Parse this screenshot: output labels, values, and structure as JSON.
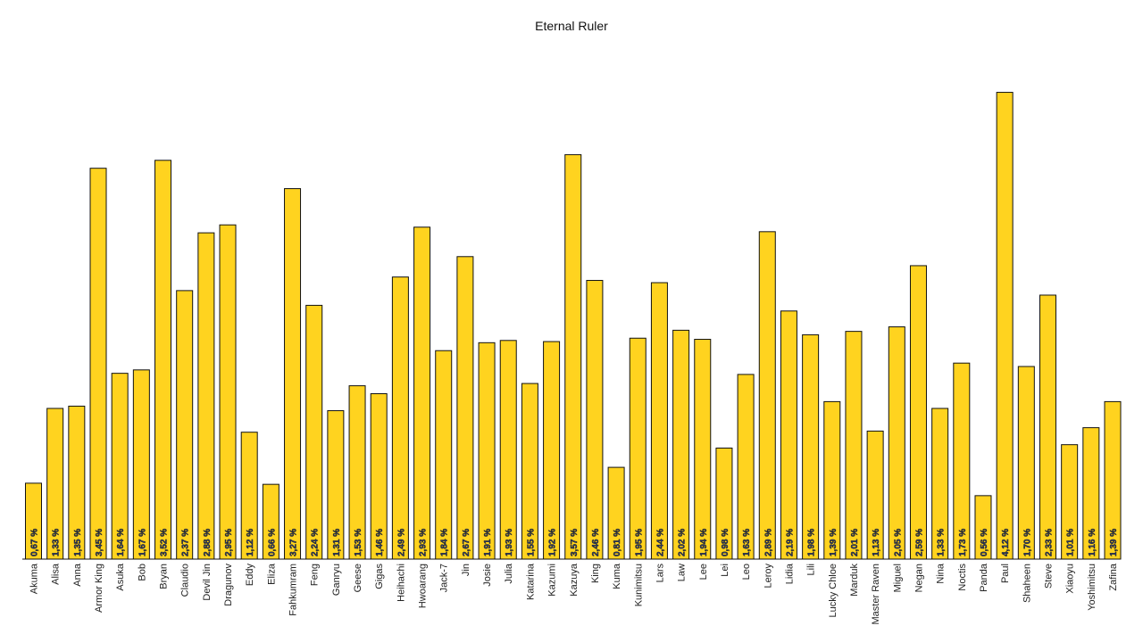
{
  "chart_data": {
    "type": "bar",
    "title": "Eternal Ruler",
    "xlabel": "",
    "ylabel": "",
    "ylim": [
      0,
      4.5
    ],
    "grid": false,
    "legend": "none",
    "bar_color": "#ffd31f",
    "edge_color": "#111111",
    "value_suffix": " %",
    "categories": [
      "Akuma",
      "Alisa",
      "Anna",
      "Armor King",
      "Asuka",
      "Bob",
      "Bryan",
      "Claudio",
      "Devil Jin",
      "Dragunov",
      "Eddy",
      "Eliza",
      "Fahkumram",
      "Feng",
      "Ganryu",
      "Geese",
      "Gigas",
      "Heihachi",
      "Hwoarang",
      "Jack-7",
      "Jin",
      "Josie",
      "Julia",
      "Katarina",
      "Kazumi",
      "Kazuya",
      "King",
      "Kuma",
      "Kunimitsu",
      "Lars",
      "Law",
      "Lee",
      "Lei",
      "Leo",
      "Leroy",
      "Lidia",
      "Lili",
      "Lucky Chloe",
      "Marduk",
      "Master Raven",
      "Miguel",
      "Negan",
      "Nina",
      "Noctis",
      "Panda",
      "Paul",
      "Shaheen",
      "Steve",
      "Xiaoyu",
      "Yoshimitsu",
      "Zafina"
    ],
    "values": [
      0.67,
      1.33,
      1.35,
      3.45,
      1.64,
      1.67,
      3.52,
      2.37,
      2.88,
      2.95,
      1.12,
      0.66,
      3.27,
      2.24,
      1.31,
      1.53,
      1.46,
      2.49,
      2.93,
      1.84,
      2.67,
      1.91,
      1.93,
      1.55,
      1.92,
      3.57,
      2.46,
      0.81,
      1.95,
      2.44,
      2.02,
      1.94,
      0.98,
      1.63,
      2.89,
      2.19,
      1.98,
      1.39,
      2.01,
      1.13,
      2.05,
      2.59,
      1.33,
      1.73,
      0.56,
      4.12,
      1.7,
      2.33,
      1.01,
      1.16,
      1.39
    ],
    "labels": [
      "0,67 %",
      "1,33 %",
      "1,35 %",
      "3,45 %",
      "1,64 %",
      "1,67 %",
      "3,52 %",
      "2,37 %",
      "2,88 %",
      "2,95 %",
      "1,12 %",
      "0,66 %",
      "3,27 %",
      "2,24 %",
      "1,31 %",
      "1,53 %",
      "1,46 %",
      "2,49 %",
      "2,93 %",
      "1,84 %",
      "2,67 %",
      "1,91 %",
      "1,93 %",
      "1,55 %",
      "1,92 %",
      "3,57 %",
      "2,46 %",
      "0,81 %",
      "1,95 %",
      "2,44 %",
      "2,02 %",
      "1,94 %",
      "0,98 %",
      "1,63 %",
      "2,89 %",
      "2,19 %",
      "1,98 %",
      "1,39 %",
      "2,01 %",
      "1,13 %",
      "2,05 %",
      "2,59 %",
      "1,33 %",
      "1,73 %",
      "0,56 %",
      "4,12 %",
      "1,70 %",
      "2,33 %",
      "1,01 %",
      "1,16 %",
      "1,39 %"
    ]
  }
}
